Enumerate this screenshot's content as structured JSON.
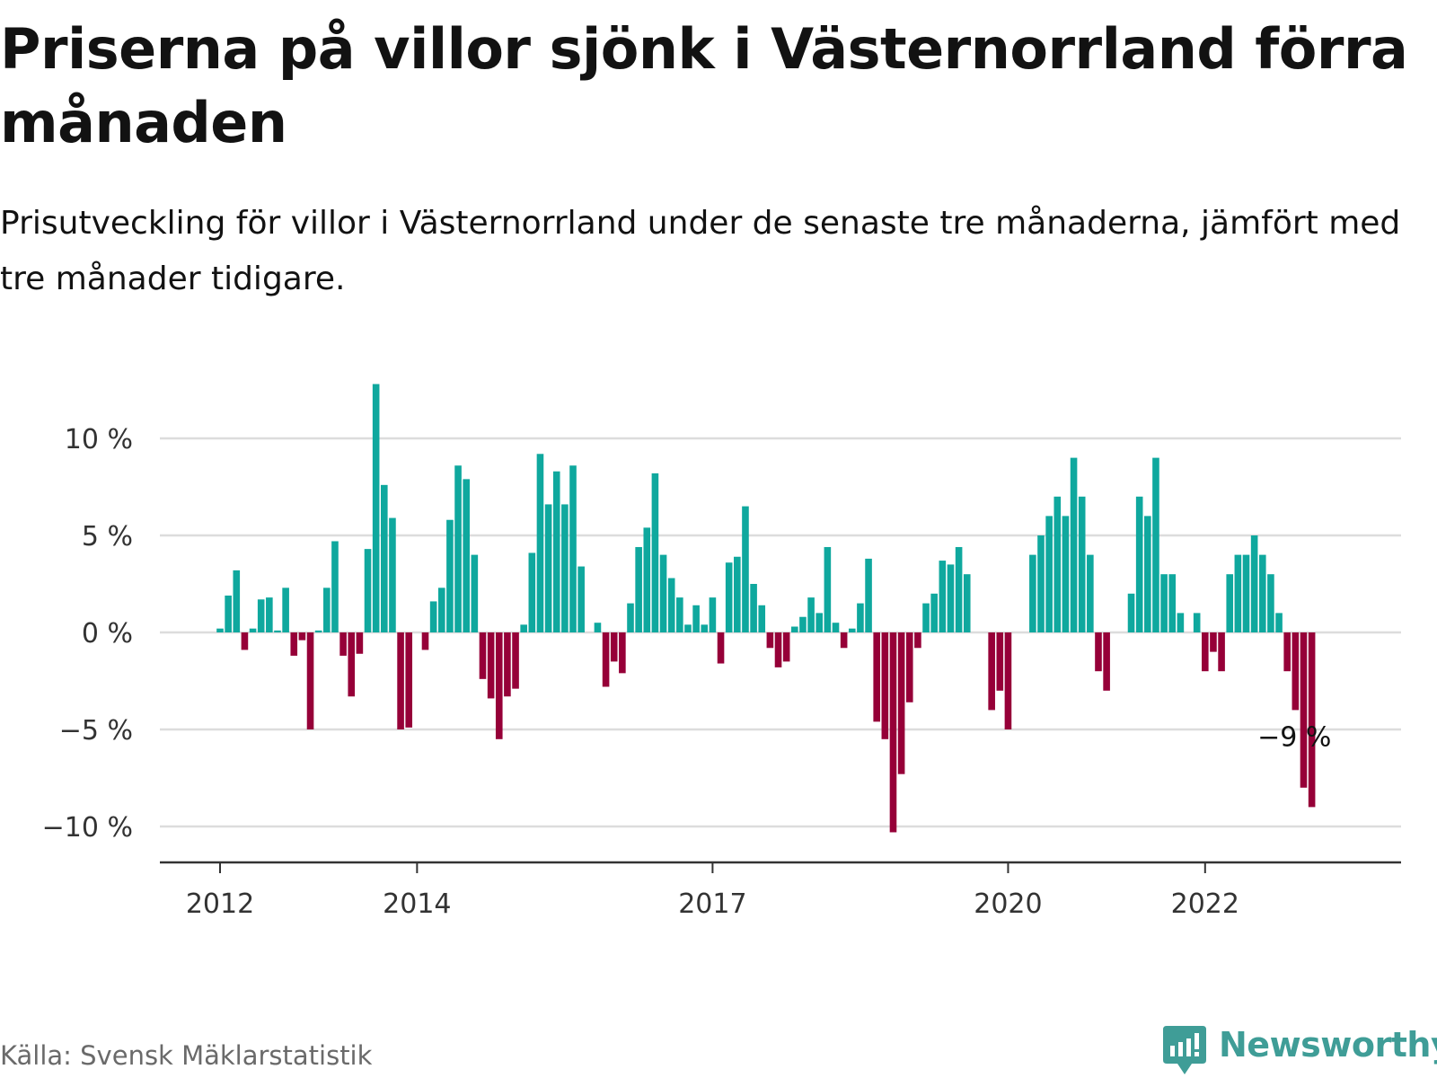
{
  "title": "Priserna på villor sjönk i Västernorrland förra månaden",
  "subtitle": "Prisutveckling för villor i Västernorrland under de senaste tre månaderna, jämfört med tre månader tidigare.",
  "source": "Källa: Svensk Mäklarstatistik",
  "brand": "Newsworthy",
  "colors": {
    "positive": "#0fa89e",
    "negative": "#960038",
    "grid": "#dcdcdc",
    "axis": "#333333",
    "brand": "#3f9d97"
  },
  "chart_data": {
    "type": "bar",
    "title": "Priserna på villor sjönk i Västernorrland förra månaden",
    "xlabel": "",
    "ylabel": "",
    "ylim": [
      -11.5,
      13.5
    ],
    "y_ticks": [
      10,
      5,
      0,
      -5,
      -10
    ],
    "y_tick_labels": [
      "10 %",
      "5 %",
      "0 %",
      "−5 %",
      "−10 %"
    ],
    "x_ticks": [
      {
        "label": "2012",
        "index": 0
      },
      {
        "label": "2014",
        "index": 24
      },
      {
        "label": "2017",
        "index": 60
      },
      {
        "label": "2020",
        "index": 96
      },
      {
        "label": "2022",
        "index": 120
      }
    ],
    "grid": true,
    "legend": "none",
    "annotation": {
      "text": "−9 %",
      "index": 131
    },
    "series": [
      {
        "values": [
          0.2,
          1.9,
          3.2,
          -0.9,
          0.2,
          1.7,
          1.8,
          0.1,
          2.3,
          -1.2,
          -0.4,
          -5.0,
          0.1,
          2.3,
          4.7,
          -1.2,
          -3.3,
          -1.1,
          4.3,
          12.8,
          7.6,
          5.9,
          -5.0,
          -4.9,
          0.0,
          -0.9,
          1.6,
          2.3,
          5.8,
          8.6,
          7.9,
          4.0,
          -2.4,
          -3.4,
          -5.5,
          -3.3,
          -2.9,
          0.4,
          4.1,
          9.2,
          6.6,
          8.3,
          6.6,
          8.6,
          3.4,
          0.0,
          0.5,
          -2.8,
          -1.5,
          -2.1,
          1.5,
          4.4,
          5.4,
          8.2,
          4.0,
          2.8,
          1.8,
          0.4,
          1.4,
          0.4,
          1.8,
          -1.6,
          3.6,
          3.9,
          6.5,
          2.5,
          1.4,
          -0.8,
          -1.8,
          -1.5,
          0.3,
          0.8,
          1.8,
          1.0,
          4.4,
          0.5,
          -0.8,
          0.2,
          1.5,
          3.8,
          -4.6,
          -5.5,
          -10.3,
          -7.3,
          -3.6,
          -0.8,
          1.5,
          2.0,
          3.7,
          3.5,
          4.4,
          3.0,
          0.0,
          0.0,
          -4.0,
          -3.0,
          -5.0,
          0.0,
          0.0,
          4.0,
          5.0,
          6.0,
          7.0,
          6.0,
          9.0,
          7.0,
          4.0,
          -2.0,
          -3.0,
          0.0,
          0.0,
          2.0,
          7.0,
          6.0,
          9.0,
          3.0,
          3.0,
          1.0,
          0.0,
          1.0,
          -2.0,
          -1.0,
          -2.0,
          3.0,
          4.0,
          4.0,
          5.0,
          4.0,
          3.0,
          1.0,
          -2.0,
          -4.0,
          -8.0,
          -9.0
        ]
      }
    ]
  }
}
